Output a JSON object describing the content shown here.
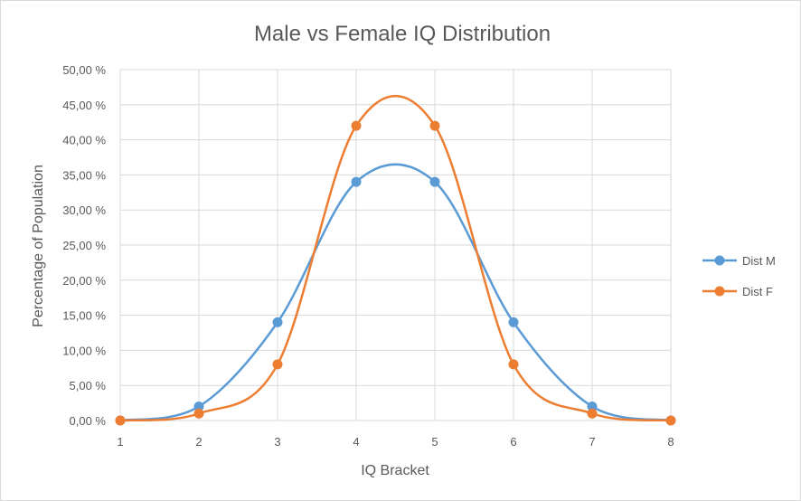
{
  "chart_data": {
    "type": "line",
    "title": "Male vs Female IQ Distribution",
    "xlabel": "IQ Bracket",
    "ylabel": "Percentage of Population",
    "x": [
      1,
      2,
      3,
      4,
      5,
      6,
      7,
      8
    ],
    "xlim": [
      1,
      8
    ],
    "ylim": [
      0,
      50
    ],
    "y_ticks": [
      0,
      5,
      10,
      15,
      20,
      25,
      30,
      35,
      40,
      45,
      50
    ],
    "y_tick_labels": [
      "0,00 %",
      "5,00 %",
      "10,00 %",
      "15,00 %",
      "20,00 %",
      "25,00 %",
      "30,00 %",
      "35,00 %",
      "40,00 %",
      "45,00 %",
      "50,00 %"
    ],
    "x_tick_labels": [
      "1",
      "2",
      "3",
      "4",
      "5",
      "6",
      "7",
      "8"
    ],
    "grid": "vertical and horizontal",
    "smoothed": true,
    "legend_position": "right",
    "series": [
      {
        "name": "Dist M",
        "color": "#5b9bd5",
        "values": [
          0,
          2,
          14,
          34,
          34,
          14,
          2,
          0
        ]
      },
      {
        "name": "Dist F",
        "color": "#ed7d31",
        "values": [
          0,
          1,
          8,
          42,
          42,
          8,
          1,
          0
        ]
      }
    ]
  }
}
